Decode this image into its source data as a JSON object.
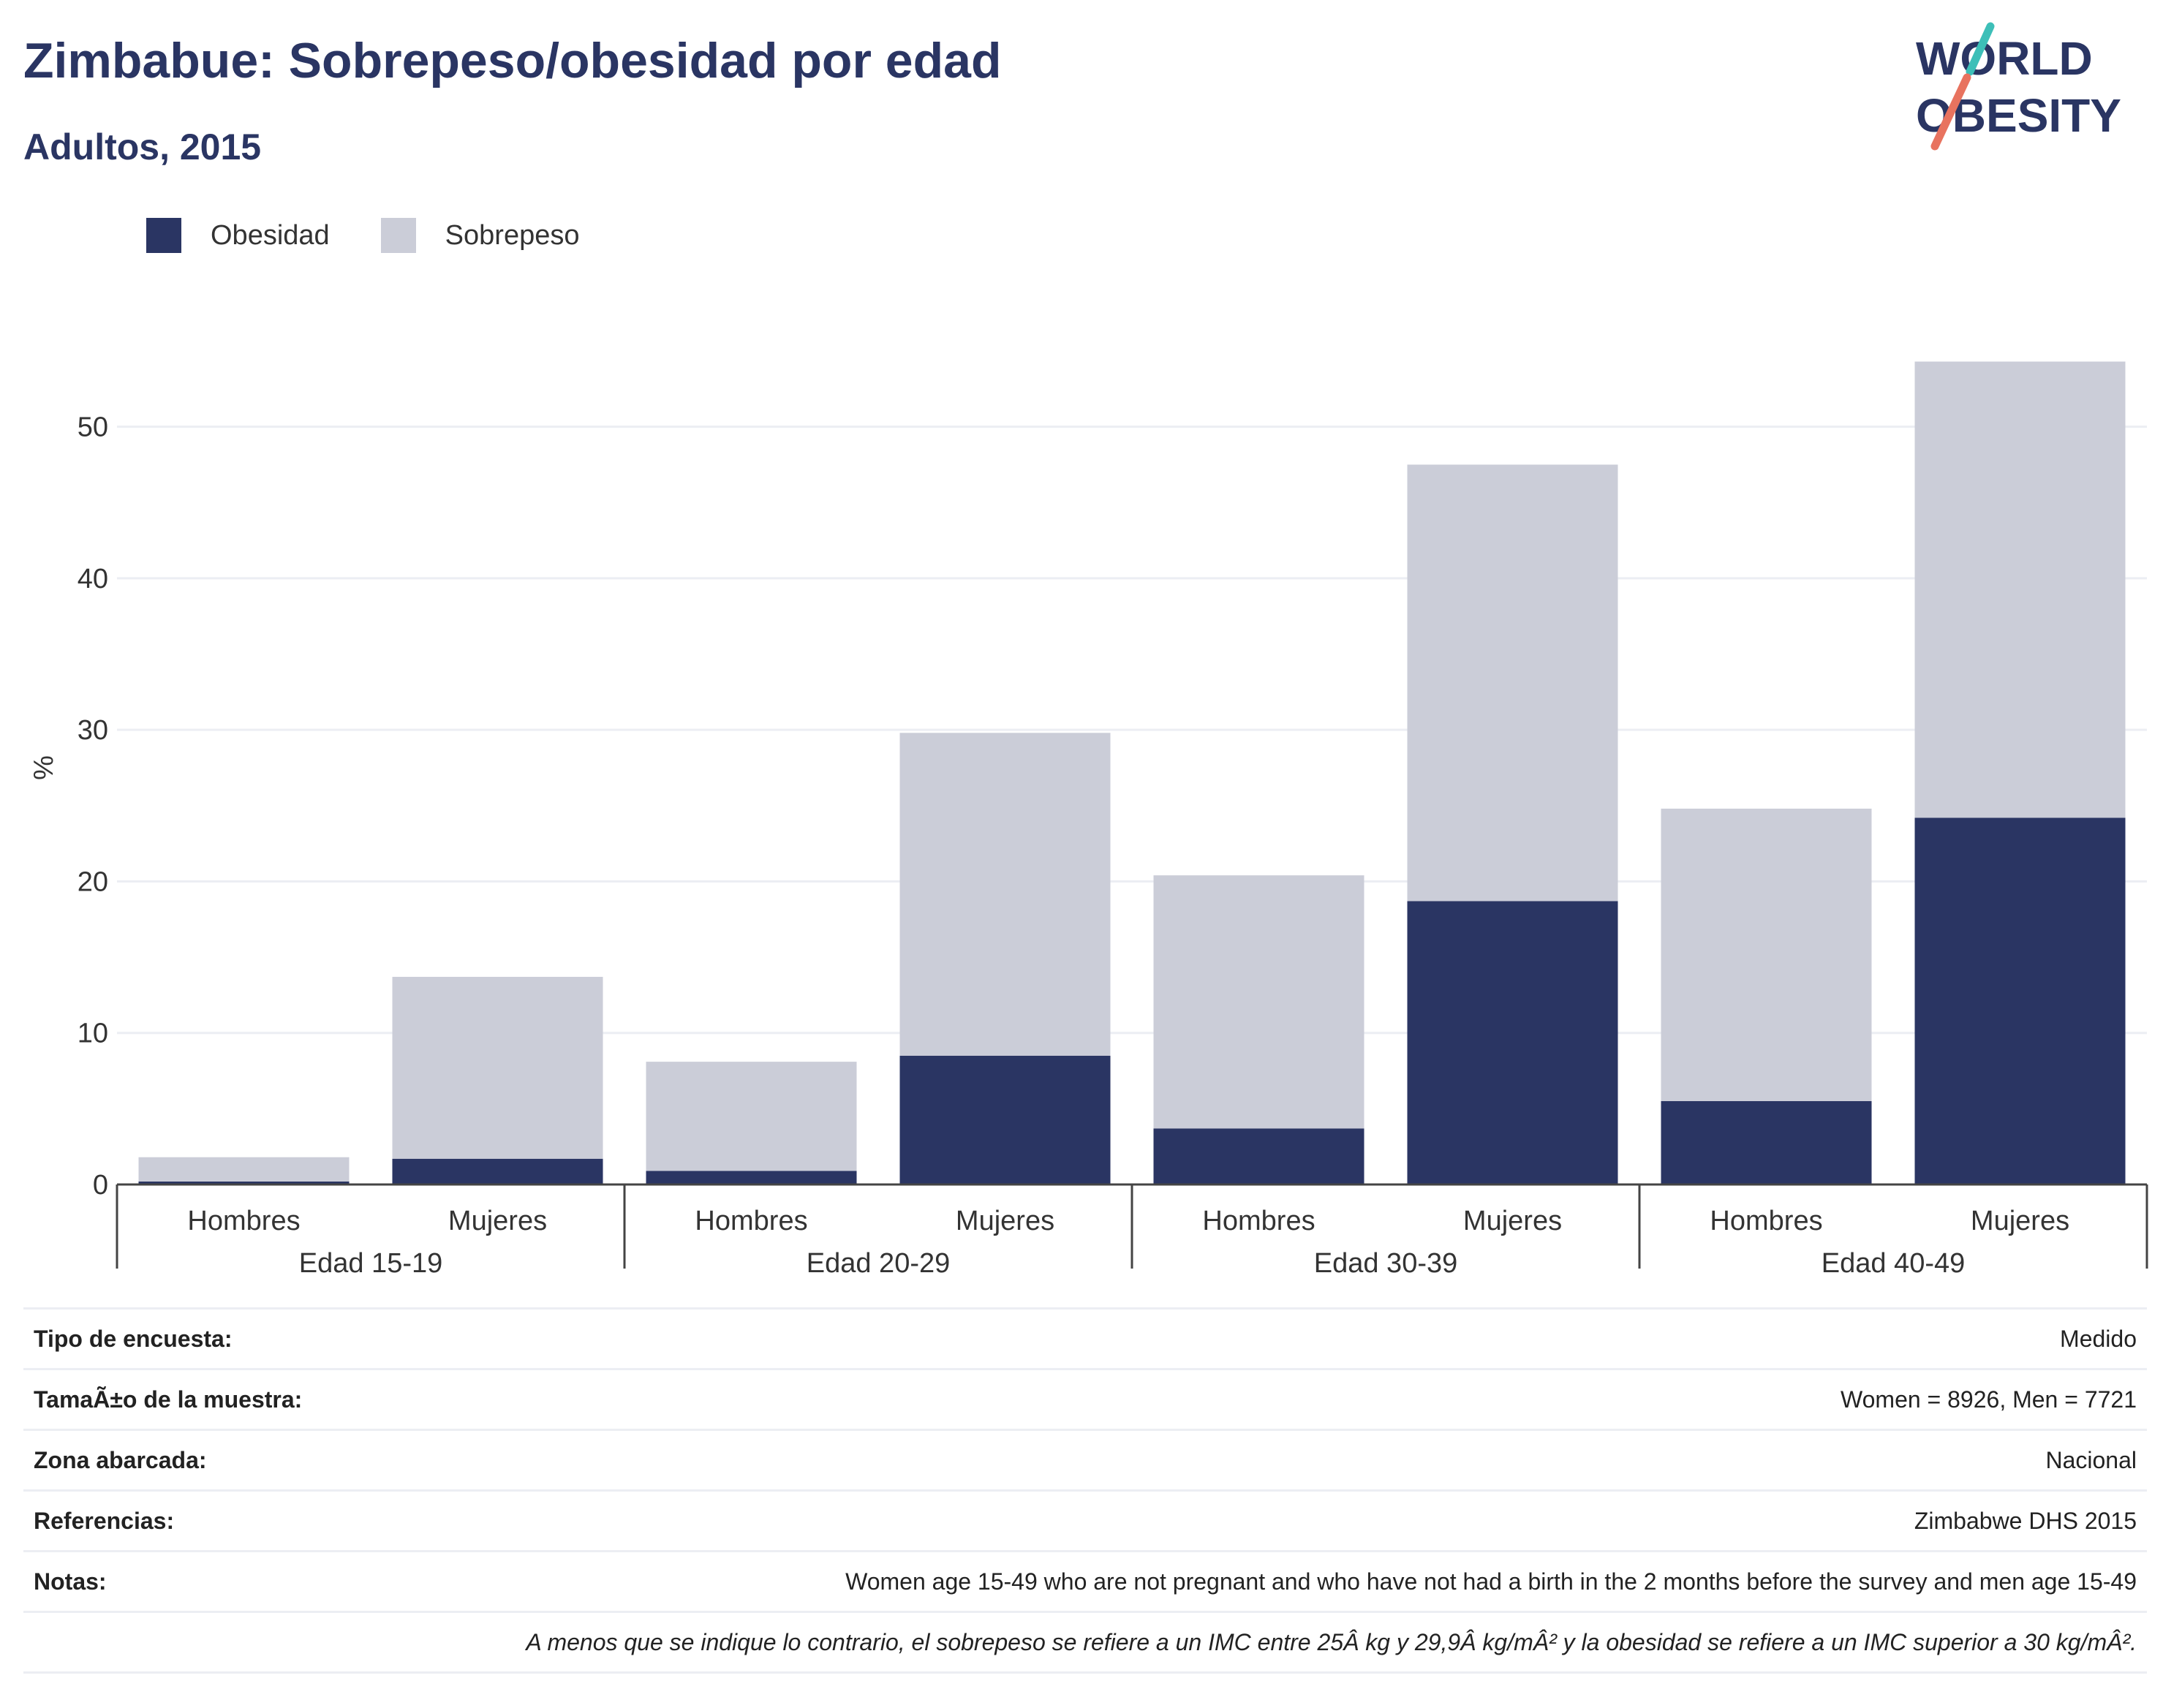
{
  "header": {
    "title": "Zimbabue: Sobrepeso/obesidad por edad",
    "subtitle": "Adultos, 2015",
    "logo_line1": "WORLD",
    "logo_line2": "OBESITY"
  },
  "legend": [
    {
      "label": "Obesidad",
      "color": "#2a3563"
    },
    {
      "label": "Sobrepeso",
      "color": "#cbcdd8"
    }
  ],
  "chart_data": {
    "type": "bar",
    "stacked": true,
    "ylabel": "%",
    "ylim": [
      0,
      55
    ],
    "yticks": [
      0,
      10,
      20,
      30,
      40,
      50
    ],
    "grid": true,
    "legend_position": "top-left",
    "groups": [
      "Edad 15-19",
      "Edad 20-29",
      "Edad 30-39",
      "Edad 40-49"
    ],
    "categories": [
      "Hombres",
      "Mujeres",
      "Hombres",
      "Mujeres",
      "Hombres",
      "Mujeres",
      "Hombres",
      "Mujeres"
    ],
    "series": [
      {
        "name": "Obesidad",
        "color": "#2a3563",
        "values": [
          0.2,
          1.7,
          0.9,
          8.5,
          3.7,
          18.7,
          5.5,
          24.2
        ]
      },
      {
        "name": "Sobrepeso",
        "color": "#cbcdd8",
        "values": [
          1.6,
          12.0,
          7.2,
          21.3,
          16.7,
          28.8,
          19.3,
          30.1
        ]
      }
    ]
  },
  "info": {
    "rows": [
      {
        "label": "Tipo de encuesta:",
        "value": "Medido"
      },
      {
        "label": "TamaÃ±o de la muestra:",
        "value": "Women = 8926, Men = 7721"
      },
      {
        "label": "Zona abarcada:",
        "value": "Nacional"
      },
      {
        "label": "Referencias:",
        "value": "Zimbabwe DHS 2015"
      },
      {
        "label": "Notas:",
        "value": "Women age 15-49 who are not pregnant and who have not had a birth in the 2 months before the survey and men age 15-49"
      }
    ],
    "footnote": "A menos que se indique lo contrario, el sobrepeso se refiere a un IMC entre 25Â kg y 29,9Â kg/mÂ² y la obesidad se refiere a un IMC superior a 30 kg/mÂ²."
  }
}
